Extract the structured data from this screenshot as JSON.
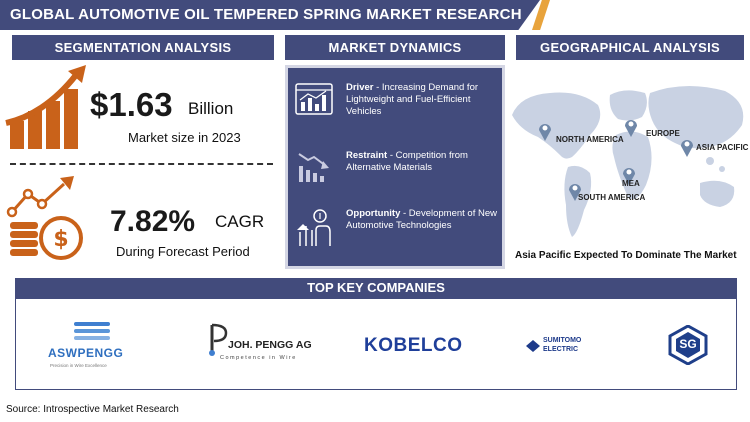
{
  "header": {
    "title": "GLOBAL AUTOMOTIVE OIL TEMPERED SPRING MARKET RESEARCH REPORT"
  },
  "segmentation": {
    "heading": "SEGMENTATION ANALYSIS",
    "market_value": "$1.63",
    "market_unit": "Billion",
    "market_caption": "Market size in 2023",
    "cagr_value": "7.82%",
    "cagr_label": "CAGR",
    "cagr_caption": "During Forecast Period"
  },
  "dynamics": {
    "heading": "MARKET DYNAMICS",
    "items": [
      {
        "label": "Driver",
        "text": " - Increasing Demand for Lightweight and Fuel-Efficient Vehicles"
      },
      {
        "label": "Restraint",
        "text": " - Competition from Alternative Materials"
      },
      {
        "label": "Opportunity",
        "text": " - Development of New Automotive Technologies"
      }
    ]
  },
  "geography": {
    "heading": "GEOGRAPHICAL ANALYSIS",
    "regions": [
      "NORTH AMERICA",
      "EUROPE",
      "ASIA PACIFIC",
      "MEA",
      "SOUTH AMERICA"
    ],
    "caption": "Asia Pacific  Expected To Dominate The Market"
  },
  "companies": {
    "heading": "TOP KEY COMPANIES",
    "logos": [
      {
        "name": "ASWPENGG",
        "tagline": "Precision in Wire Excellence"
      },
      {
        "name": "JOH. PENGG AG",
        "tagline": "Competence in Wire"
      },
      {
        "name": "KOBELCO"
      },
      {
        "name": "SUMITOMO ELECTRIC",
        "line1": "SUMITOMO",
        "line2": "ELECTRIC"
      },
      {
        "name": "SG"
      }
    ]
  },
  "source": "Source: Introspective Market Research",
  "colors": {
    "navy": "#424b7c",
    "orange": "#c9621a",
    "accent": "#e8a33c",
    "map": "#c9d2e3",
    "pin": "#6f87a8"
  }
}
